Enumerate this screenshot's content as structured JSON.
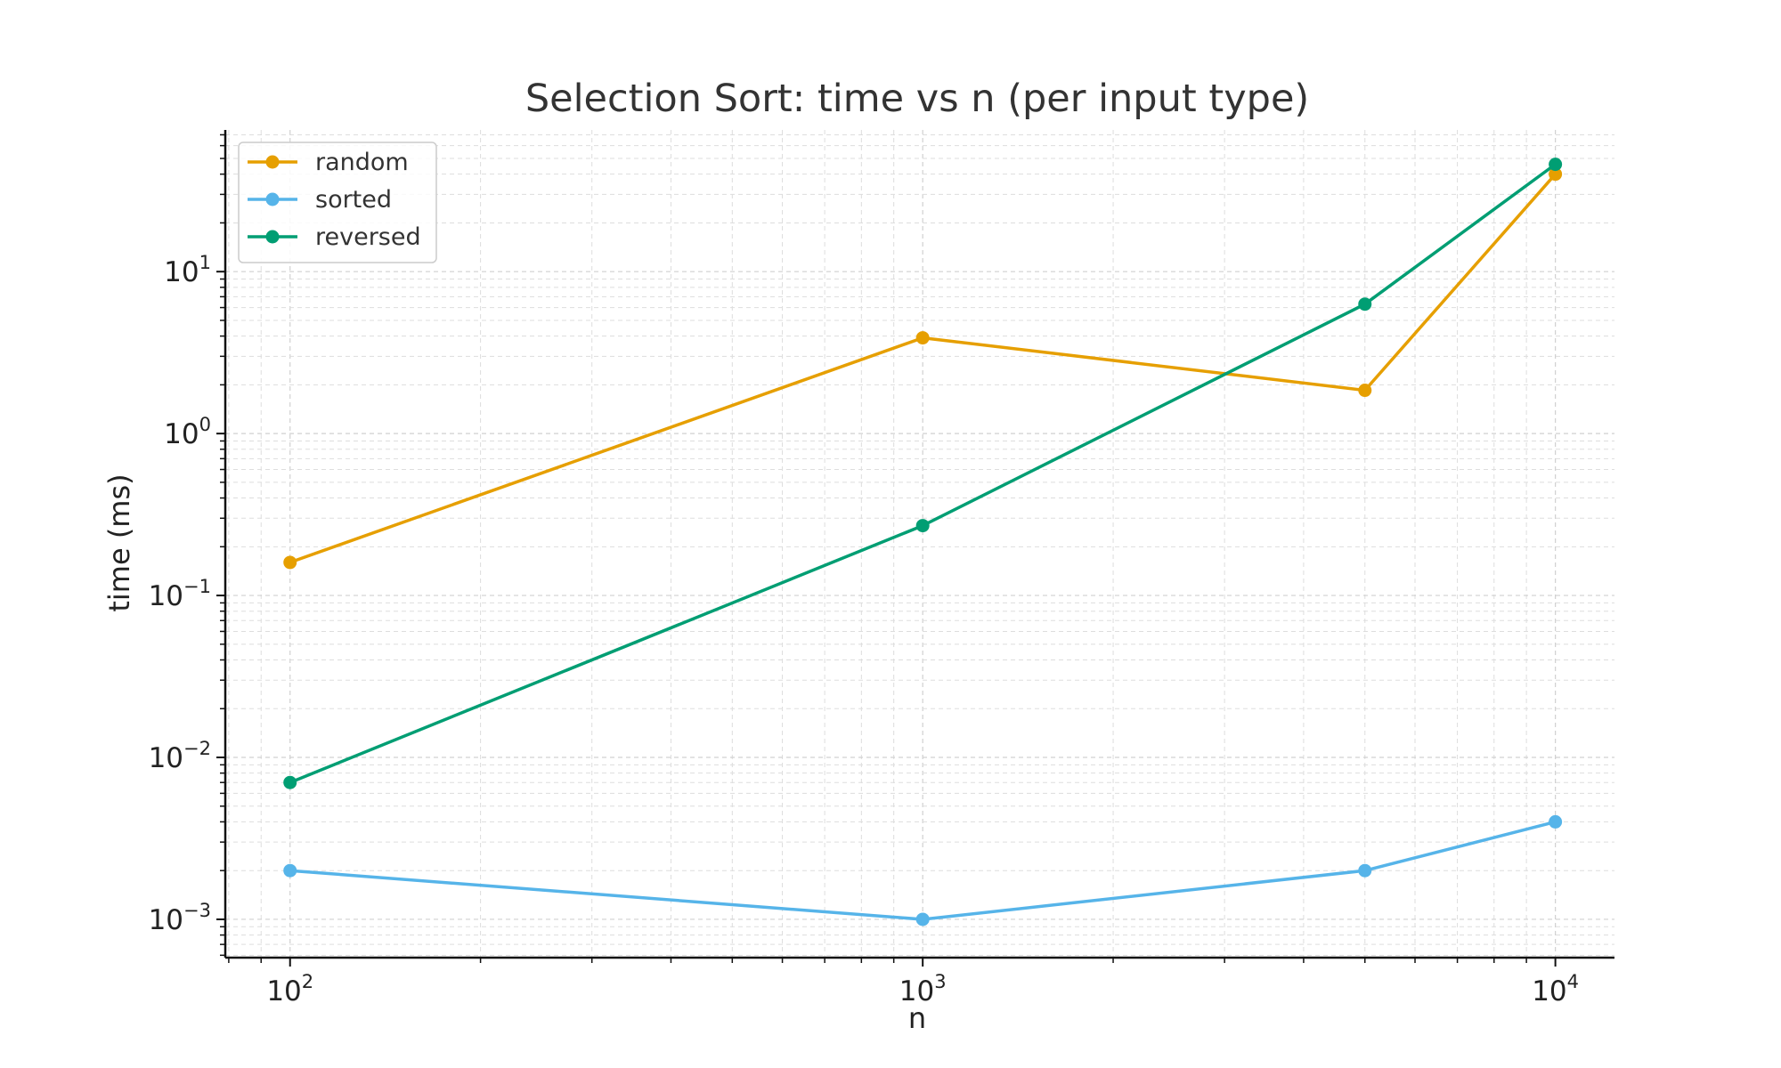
{
  "chart_data": {
    "type": "line",
    "title": "Selection Sort: time vs n (per input type)",
    "xlabel": "n",
    "ylabel": "time (ms)",
    "x_scale": "log",
    "y_scale": "log",
    "xlim": [
      79,
      12400
    ],
    "ylim": [
      0.00058,
      75
    ],
    "grid": true,
    "legend_position": "top-left",
    "x_ticks": [
      {
        "value": 100,
        "base": "10",
        "exp": "2"
      },
      {
        "value": 1000,
        "base": "10",
        "exp": "3"
      },
      {
        "value": 10000,
        "base": "10",
        "exp": "4"
      }
    ],
    "y_ticks": [
      {
        "value": 0.001,
        "base": "10",
        "exp": "−3"
      },
      {
        "value": 0.01,
        "base": "10",
        "exp": "−2"
      },
      {
        "value": 0.1,
        "base": "10",
        "exp": "−1"
      },
      {
        "value": 1,
        "base": "10",
        "exp": "0"
      },
      {
        "value": 10,
        "base": "10",
        "exp": "1"
      }
    ],
    "x": [
      100,
      1000,
      5000,
      10000
    ],
    "series": [
      {
        "name": "random",
        "color": "#E69F00",
        "values": [
          0.16,
          3.9,
          1.85,
          40
        ]
      },
      {
        "name": "sorted",
        "color": "#56B4E9",
        "values": [
          0.002,
          0.001,
          0.002,
          0.004
        ]
      },
      {
        "name": "reversed",
        "color": "#009E73",
        "values": [
          0.007,
          0.27,
          6.3,
          46
        ]
      }
    ]
  }
}
